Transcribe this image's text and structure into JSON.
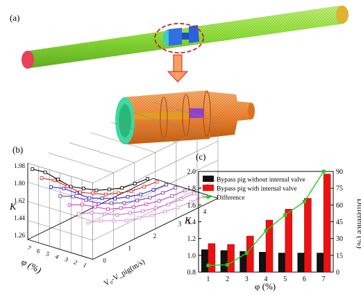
{
  "panel_labels": {
    "a": "(a)",
    "b": "(b)",
    "c": "(c)"
  },
  "colors": {
    "pipe": "#8ee03a",
    "pipe_end_left": "#e8405a",
    "pipe_end_right": "#e0b230",
    "pig_small": "#2a5fe0",
    "pig_big": "#f08a3a",
    "pig_face": "#40d8a0",
    "ellipse": "#d42020",
    "arrow": "#f4a060",
    "bar_black": "#111111",
    "bar_red": "#ee1111",
    "diff_green": "#22cc22"
  },
  "chart_data": [
    {
      "type": "line3d",
      "panel": "(b)",
      "zlabel": "K",
      "xlabel": "φ (%)",
      "ylabel": "V₀-V_pig(m/s)",
      "z_ticks": [
        "1.98",
        "1.80",
        "1.62",
        "1.44",
        "1.26"
      ],
      "x_ticks": [
        "7",
        "6",
        "5",
        "4",
        "3",
        "2",
        "1"
      ],
      "y_ticks": [
        "0",
        "1",
        "2",
        "3",
        "4"
      ],
      "series_colors": [
        "#000000",
        "#e02020",
        "#2020d0",
        "#8030b0",
        "#c040c0",
        "#d070d0",
        "#e090e0"
      ]
    },
    {
      "type": "bar",
      "panel": "(c)",
      "categories": [
        "1",
        "2",
        "3",
        "4",
        "5",
        "6",
        "7"
      ],
      "xlabel": "φ (%)",
      "ylabel": "K",
      "ylabel_right": "Difference (%)",
      "ylim": [
        0.8,
        2.0
      ],
      "y_ticks": [
        0.8,
        1.0,
        1.2,
        1.4,
        1.6,
        1.8,
        2.0
      ],
      "ylim_right": [
        0,
        90
      ],
      "y_ticks_right": [
        0,
        15,
        30,
        45,
        60,
        75,
        90
      ],
      "legend_position": "top-left",
      "series": [
        {
          "name": "Bypass pig without internal valve",
          "type": "bar",
          "values": [
            1.07,
            1.06,
            1.05,
            1.04,
            1.03,
            1.03,
            1.03
          ]
        },
        {
          "name": "Bypass pig with internal valve",
          "type": "bar",
          "values": [
            1.14,
            1.13,
            1.23,
            1.42,
            1.55,
            1.68,
            1.97
          ]
        },
        {
          "name": "Difference",
          "type": "line",
          "axis": "right",
          "values": [
            6,
            6.5,
            17,
            37,
            51,
            63,
            90
          ]
        }
      ]
    }
  ]
}
